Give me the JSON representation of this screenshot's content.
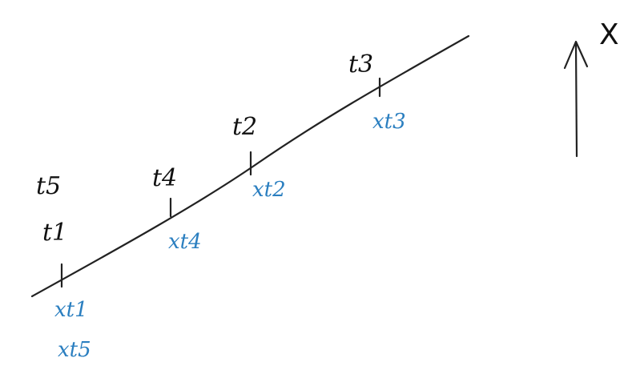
{
  "axis": {
    "label": "X"
  },
  "colors": {
    "ink": "#222222",
    "blue": "#2b7fc0"
  },
  "time_labels": {
    "t1": "t1",
    "t2": "t2",
    "t3": "t3",
    "t4": "t4",
    "t5": "t5"
  },
  "point_labels": {
    "x_t1": "xt1",
    "x_t2": "xt2",
    "x_t3": "xt3",
    "x_t4": "xt4",
    "x_t5": "xt5"
  }
}
